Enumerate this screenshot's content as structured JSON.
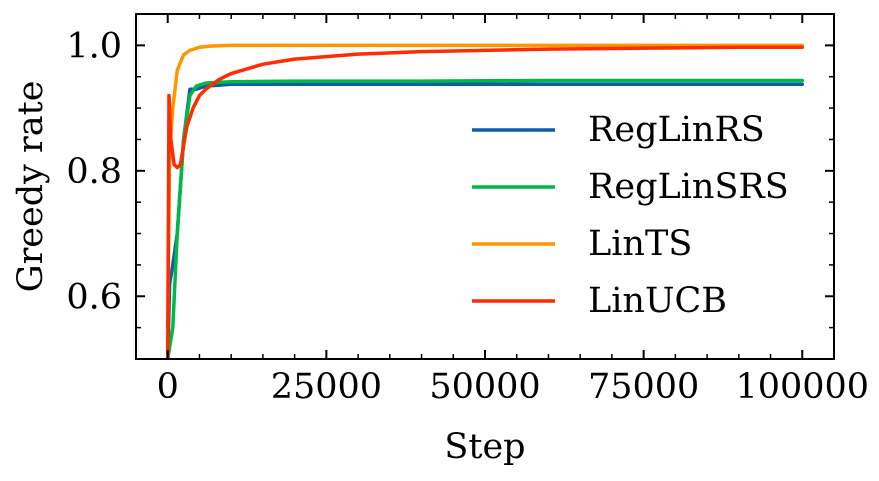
{
  "chart_data": {
    "type": "line",
    "title": "",
    "xlabel": "Step",
    "ylabel": "Greedy rate",
    "xlim": [
      -5000,
      105000
    ],
    "ylim": [
      0.5,
      1.05
    ],
    "xticks": [
      0,
      25000,
      50000,
      75000,
      100000
    ],
    "xtick_labels": [
      "0",
      "25000",
      "50000",
      "75000",
      "100000"
    ],
    "yticks": [
      0.6,
      0.8,
      1.0
    ],
    "ytick_labels": [
      "0.6",
      "0.8",
      "1.0"
    ],
    "grid": false,
    "legend_position": "right",
    "series": [
      {
        "name": "RegLinRS",
        "color": "#0c5da5",
        "x": [
          0,
          300,
          800,
          1500,
          2500,
          3500,
          4500,
          6000,
          10000,
          20000,
          40000,
          60000,
          80000,
          100000
        ],
        "y": [
          0.5,
          0.62,
          0.65,
          0.7,
          0.85,
          0.93,
          0.93,
          0.935,
          0.938,
          0.938,
          0.938,
          0.938,
          0.938,
          0.938
        ]
      },
      {
        "name": "RegLinSRS",
        "color": "#00b945",
        "x": [
          0,
          800,
          1500,
          2500,
          3500,
          4500,
          6000,
          10000,
          20000,
          40000,
          60000,
          80000,
          100000
        ],
        "y": [
          0.5,
          0.55,
          0.7,
          0.85,
          0.92,
          0.935,
          0.94,
          0.942,
          0.943,
          0.943,
          0.944,
          0.944,
          0.944
        ]
      },
      {
        "name": "LinTS",
        "color": "#ff9500",
        "x": [
          0,
          300,
          800,
          1500,
          2500,
          3500,
          5000,
          7000,
          10000,
          20000,
          40000,
          60000,
          80000,
          100000
        ],
        "y": [
          0.55,
          0.83,
          0.9,
          0.96,
          0.985,
          0.992,
          0.997,
          0.999,
          1.0,
          1.0,
          1.0,
          1.0,
          1.0,
          1.0
        ]
      },
      {
        "name": "LinUCB",
        "color": "#ff2c00",
        "x": [
          0,
          200,
          500,
          1000,
          1500,
          2000,
          2500,
          3000,
          4000,
          5000,
          6000,
          8000,
          10000,
          15000,
          20000,
          30000,
          40000,
          50000,
          60000,
          70000,
          80000,
          90000,
          100000
        ],
        "y": [
          0.5,
          0.92,
          0.85,
          0.81,
          0.805,
          0.81,
          0.84,
          0.87,
          0.9,
          0.92,
          0.93,
          0.945,
          0.955,
          0.97,
          0.978,
          0.986,
          0.99,
          0.992,
          0.994,
          0.995,
          0.996,
          0.997,
          0.997
        ]
      }
    ]
  }
}
